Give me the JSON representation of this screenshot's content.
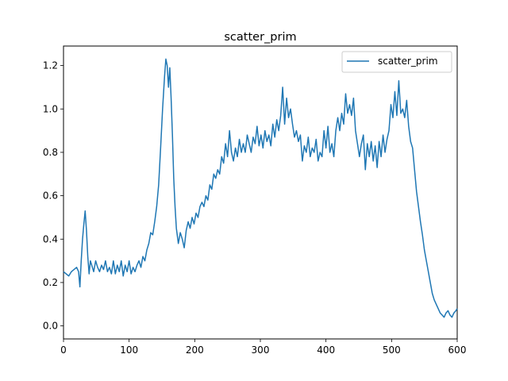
{
  "chart_data": {
    "type": "line",
    "title": "scatter_prim",
    "xlabel": "",
    "ylabel": "",
    "xlim": [
      0,
      600
    ],
    "ylim": [
      -0.06,
      1.29
    ],
    "xticks": [
      0,
      100,
      200,
      300,
      400,
      500,
      600
    ],
    "yticks": [
      0.0,
      0.2,
      0.4,
      0.6,
      0.8,
      1.0,
      1.2
    ],
    "xtick_labels": [
      "0",
      "100",
      "200",
      "300",
      "400",
      "500",
      "600"
    ],
    "ytick_labels": [
      "0.0",
      "0.2",
      "0.4",
      "0.6",
      "0.8",
      "1.0",
      "1.2"
    ],
    "grid": false,
    "legend_position": "top-right",
    "series": [
      {
        "name": "scatter_prim",
        "color": "#1f77b4",
        "points": [
          [
            0,
            0.25
          ],
          [
            4,
            0.24
          ],
          [
            8,
            0.23
          ],
          [
            12,
            0.25
          ],
          [
            16,
            0.26
          ],
          [
            20,
            0.27
          ],
          [
            23,
            0.25
          ],
          [
            25,
            0.18
          ],
          [
            27,
            0.3
          ],
          [
            29,
            0.4
          ],
          [
            31,
            0.47
          ],
          [
            33,
            0.53
          ],
          [
            35,
            0.44
          ],
          [
            37,
            0.32
          ],
          [
            39,
            0.24
          ],
          [
            41,
            0.3
          ],
          [
            43,
            0.28
          ],
          [
            46,
            0.25
          ],
          [
            49,
            0.3
          ],
          [
            52,
            0.27
          ],
          [
            55,
            0.25
          ],
          [
            58,
            0.28
          ],
          [
            61,
            0.26
          ],
          [
            64,
            0.3
          ],
          [
            67,
            0.25
          ],
          [
            70,
            0.27
          ],
          [
            73,
            0.24
          ],
          [
            76,
            0.3
          ],
          [
            79,
            0.24
          ],
          [
            82,
            0.28
          ],
          [
            85,
            0.25
          ],
          [
            88,
            0.3
          ],
          [
            91,
            0.23
          ],
          [
            94,
            0.28
          ],
          [
            97,
            0.25
          ],
          [
            100,
            0.3
          ],
          [
            103,
            0.24
          ],
          [
            106,
            0.27
          ],
          [
            109,
            0.25
          ],
          [
            112,
            0.28
          ],
          [
            115,
            0.3
          ],
          [
            118,
            0.27
          ],
          [
            121,
            0.32
          ],
          [
            124,
            0.3
          ],
          [
            127,
            0.35
          ],
          [
            130,
            0.38
          ],
          [
            133,
            0.43
          ],
          [
            136,
            0.42
          ],
          [
            139,
            0.48
          ],
          [
            142,
            0.55
          ],
          [
            145,
            0.65
          ],
          [
            148,
            0.82
          ],
          [
            151,
            1.0
          ],
          [
            154,
            1.15
          ],
          [
            156,
            1.23
          ],
          [
            158,
            1.2
          ],
          [
            160,
            1.1
          ],
          [
            162,
            1.19
          ],
          [
            164,
            1.05
          ],
          [
            166,
            0.88
          ],
          [
            168,
            0.68
          ],
          [
            170,
            0.55
          ],
          [
            172,
            0.45
          ],
          [
            175,
            0.38
          ],
          [
            178,
            0.43
          ],
          [
            181,
            0.4
          ],
          [
            184,
            0.36
          ],
          [
            187,
            0.44
          ],
          [
            190,
            0.48
          ],
          [
            193,
            0.45
          ],
          [
            196,
            0.5
          ],
          [
            199,
            0.47
          ],
          [
            202,
            0.52
          ],
          [
            205,
            0.5
          ],
          [
            208,
            0.55
          ],
          [
            211,
            0.57
          ],
          [
            214,
            0.55
          ],
          [
            217,
            0.6
          ],
          [
            220,
            0.58
          ],
          [
            223,
            0.65
          ],
          [
            226,
            0.63
          ],
          [
            229,
            0.7
          ],
          [
            232,
            0.68
          ],
          [
            235,
            0.72
          ],
          [
            238,
            0.7
          ],
          [
            241,
            0.78
          ],
          [
            244,
            0.75
          ],
          [
            247,
            0.84
          ],
          [
            250,
            0.78
          ],
          [
            253,
            0.9
          ],
          [
            256,
            0.8
          ],
          [
            259,
            0.76
          ],
          [
            262,
            0.82
          ],
          [
            265,
            0.78
          ],
          [
            268,
            0.86
          ],
          [
            271,
            0.8
          ],
          [
            274,
            0.84
          ],
          [
            277,
            0.8
          ],
          [
            280,
            0.88
          ],
          [
            283,
            0.84
          ],
          [
            286,
            0.8
          ],
          [
            289,
            0.87
          ],
          [
            292,
            0.84
          ],
          [
            295,
            0.92
          ],
          [
            298,
            0.83
          ],
          [
            301,
            0.88
          ],
          [
            304,
            0.82
          ],
          [
            307,
            0.9
          ],
          [
            310,
            0.85
          ],
          [
            313,
            0.88
          ],
          [
            316,
            0.83
          ],
          [
            319,
            0.93
          ],
          [
            322,
            0.87
          ],
          [
            325,
            0.95
          ],
          [
            328,
            0.9
          ],
          [
            331,
            0.97
          ],
          [
            334,
            1.1
          ],
          [
            337,
            0.93
          ],
          [
            340,
            1.05
          ],
          [
            343,
            0.96
          ],
          [
            346,
            1.0
          ],
          [
            349,
            0.93
          ],
          [
            352,
            0.87
          ],
          [
            355,
            0.9
          ],
          [
            358,
            0.85
          ],
          [
            361,
            0.88
          ],
          [
            364,
            0.76
          ],
          [
            367,
            0.83
          ],
          [
            370,
            0.8
          ],
          [
            373,
            0.87
          ],
          [
            376,
            0.78
          ],
          [
            379,
            0.82
          ],
          [
            382,
            0.8
          ],
          [
            385,
            0.86
          ],
          [
            388,
            0.76
          ],
          [
            391,
            0.8
          ],
          [
            394,
            0.78
          ],
          [
            397,
            0.9
          ],
          [
            400,
            0.82
          ],
          [
            403,
            0.92
          ],
          [
            406,
            0.8
          ],
          [
            409,
            0.84
          ],
          [
            412,
            0.78
          ],
          [
            415,
            0.9
          ],
          [
            418,
            0.96
          ],
          [
            421,
            0.9
          ],
          [
            424,
            0.98
          ],
          [
            427,
            0.93
          ],
          [
            430,
            1.07
          ],
          [
            433,
            0.98
          ],
          [
            436,
            1.02
          ],
          [
            439,
            0.97
          ],
          [
            442,
            1.05
          ],
          [
            445,
            0.9
          ],
          [
            448,
            0.84
          ],
          [
            451,
            0.78
          ],
          [
            454,
            0.84
          ],
          [
            457,
            0.88
          ],
          [
            460,
            0.72
          ],
          [
            463,
            0.84
          ],
          [
            466,
            0.78
          ],
          [
            469,
            0.85
          ],
          [
            472,
            0.76
          ],
          [
            475,
            0.83
          ],
          [
            478,
            0.73
          ],
          [
            481,
            0.85
          ],
          [
            484,
            0.78
          ],
          [
            487,
            0.88
          ],
          [
            490,
            0.8
          ],
          [
            493,
            0.86
          ],
          [
            496,
            0.9
          ],
          [
            499,
            1.02
          ],
          [
            502,
            0.96
          ],
          [
            505,
            1.08
          ],
          [
            508,
            0.97
          ],
          [
            511,
            1.13
          ],
          [
            514,
            0.98
          ],
          [
            517,
            1.0
          ],
          [
            520,
            0.96
          ],
          [
            523,
            1.04
          ],
          [
            526,
            0.92
          ],
          [
            529,
            0.85
          ],
          [
            532,
            0.82
          ],
          [
            535,
            0.72
          ],
          [
            538,
            0.62
          ],
          [
            541,
            0.55
          ],
          [
            544,
            0.48
          ],
          [
            547,
            0.42
          ],
          [
            550,
            0.35
          ],
          [
            553,
            0.3
          ],
          [
            556,
            0.25
          ],
          [
            559,
            0.2
          ],
          [
            562,
            0.15
          ],
          [
            565,
            0.12
          ],
          [
            568,
            0.1
          ],
          [
            571,
            0.08
          ],
          [
            574,
            0.06
          ],
          [
            577,
            0.05
          ],
          [
            580,
            0.04
          ],
          [
            583,
            0.06
          ],
          [
            586,
            0.07
          ],
          [
            589,
            0.05
          ],
          [
            592,
            0.04
          ],
          [
            595,
            0.06
          ],
          [
            598,
            0.07
          ],
          [
            600,
            0.08
          ]
        ]
      }
    ]
  }
}
